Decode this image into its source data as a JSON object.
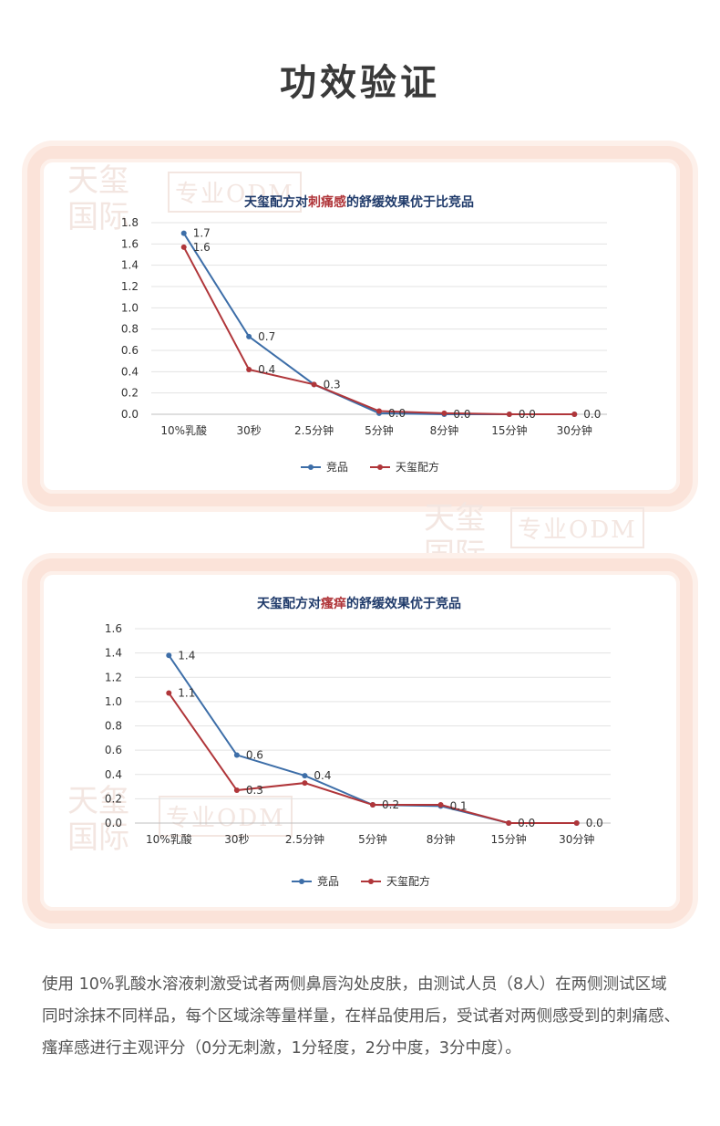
{
  "page": {
    "title": "功效验证"
  },
  "watermark": {
    "brand": "天玺国际",
    "badge": "专业ODM"
  },
  "chart_data": [
    {
      "type": "line",
      "title_parts": [
        "天玺配方对",
        "刺痛感",
        "的舒缓效果优于比竞品"
      ],
      "categories": [
        "10%乳酸",
        "30秒",
        "2.5分钟",
        "5分钟",
        "8分钟",
        "15分钟",
        "30分钟"
      ],
      "ylim": [
        0,
        1.8
      ],
      "yticks": [
        "0.0",
        "0.2",
        "0.4",
        "0.6",
        "0.8",
        "1.0",
        "1.2",
        "1.4",
        "1.6",
        "1.8"
      ],
      "grid": true,
      "legend_position": "bottom",
      "series": [
        {
          "name": "竞品",
          "color": "#3d6ea8",
          "values": [
            1.7,
            0.73,
            0.28,
            0.01,
            0.0,
            0.0,
            0.0
          ]
        },
        {
          "name": "天玺配方",
          "color": "#b0363a",
          "values": [
            1.57,
            0.42,
            0.28,
            0.03,
            0.01,
            0.0,
            0.0
          ]
        }
      ],
      "data_labels": [
        {
          "series": 0,
          "index": 0,
          "text": "1.7"
        },
        {
          "series": 1,
          "index": 0,
          "text": "1.6"
        },
        {
          "series": 0,
          "index": 1,
          "text": "0.7"
        },
        {
          "series": 1,
          "index": 1,
          "text": "0.4"
        },
        {
          "series": 0,
          "index": 2,
          "text": "0.3"
        },
        {
          "series": 0,
          "index": 3,
          "text": "0.0"
        },
        {
          "series": 0,
          "index": 4,
          "text": "0.0"
        },
        {
          "series": 0,
          "index": 5,
          "text": "0.0"
        },
        {
          "series": 0,
          "index": 6,
          "text": "0.0"
        }
      ]
    },
    {
      "type": "line",
      "title_parts": [
        "天玺配方对",
        "瘙痒",
        "的舒缓效果优于竞品"
      ],
      "categories": [
        "10%乳酸",
        "30秒",
        "2.5分钟",
        "5分钟",
        "8分钟",
        "15分钟",
        "30分钟"
      ],
      "ylim": [
        0,
        1.6
      ],
      "yticks": [
        "0.0",
        "0.2",
        "0.4",
        "0.6",
        "0.8",
        "1.0",
        "1.2",
        "1.4",
        "1.6"
      ],
      "grid": true,
      "legend_position": "bottom",
      "series": [
        {
          "name": "竞品",
          "color": "#3d6ea8",
          "values": [
            1.38,
            0.56,
            0.39,
            0.15,
            0.14,
            0.0,
            0.0
          ]
        },
        {
          "name": "天玺配方",
          "color": "#b0363a",
          "values": [
            1.07,
            0.27,
            0.33,
            0.15,
            0.15,
            0.0,
            0.0
          ]
        }
      ],
      "data_labels": [
        {
          "series": 0,
          "index": 0,
          "text": "1.4"
        },
        {
          "series": 1,
          "index": 0,
          "text": "1.1"
        },
        {
          "series": 0,
          "index": 1,
          "text": "0.6"
        },
        {
          "series": 1,
          "index": 1,
          "text": "0.3"
        },
        {
          "series": 0,
          "index": 2,
          "text": "0.4"
        },
        {
          "series": 0,
          "index": 3,
          "text": "0.2"
        },
        {
          "series": 0,
          "index": 4,
          "text": "0.1"
        },
        {
          "series": 0,
          "index": 5,
          "text": "0.0"
        },
        {
          "series": 0,
          "index": 6,
          "text": "0.0"
        }
      ]
    }
  ],
  "description": "使用 10%乳酸水溶液刺激受试者两侧鼻唇沟处皮肤，由测试人员（8人）在两侧测试区域同时涂抹不同样品，每个区域涂等量样量，在样品使用后，受试者对两侧感受到的刺痛感、瘙痒感进行主观评分（0分无刺激，1分轻度，2分中度，3分中度）。"
}
